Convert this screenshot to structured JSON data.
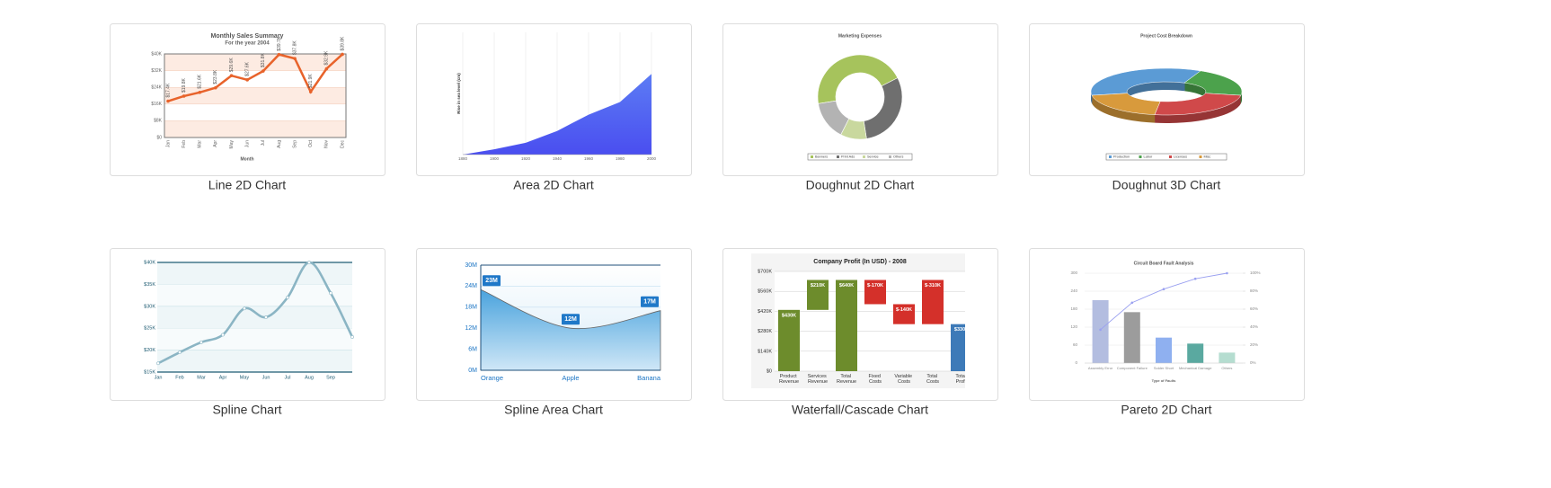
{
  "cards": [
    {
      "caption": "Line 2D Chart",
      "chart": {
        "type": "line",
        "title": "Monthly Sales Summary",
        "subtitle": "For the year 2004",
        "x_label": "Month",
        "categories": [
          "Jan",
          "Feb",
          "Mar",
          "Apr",
          "May",
          "Jun",
          "Jul",
          "Aug",
          "Sep",
          "Oct",
          "Nov",
          "Dec"
        ],
        "values": [
          17400,
          19800,
          21600,
          23800,
          29600,
          27600,
          31800,
          39700,
          37800,
          21900,
          32900,
          39800
        ],
        "value_labels": [
          "$17.4K",
          "$19.8K",
          "$21.6K",
          "$23.8K",
          "$29.6K",
          "$27.6K",
          "$31.8K",
          "$39.7K",
          "$37.8K",
          "$21.9K",
          "$32.9K",
          "$39.8K"
        ],
        "ylim": [
          0,
          40000
        ],
        "yticks": [
          {
            "value": 0,
            "label": "$0"
          },
          {
            "value": 8000,
            "label": "$8K"
          },
          {
            "value": 16000,
            "label": "$16K"
          },
          {
            "value": 24000,
            "label": "$24K"
          },
          {
            "value": 32000,
            "label": "$32K"
          },
          {
            "value": 40000,
            "label": "$40K"
          }
        ],
        "color": "#e8632b",
        "band_color": "#fdebe2"
      }
    },
    {
      "caption": "Area 2D Chart",
      "chart": {
        "type": "area",
        "y_label": "Rise in sea level (cm)",
        "x": [
          1880,
          1900,
          1920,
          1940,
          1960,
          1980,
          2000
        ],
        "values": [
          0,
          1.3,
          2.9,
          5.8,
          9.8,
          12.9,
          19.8
        ],
        "xlim": [
          1880,
          2000
        ],
        "xticks": [
          1880,
          1900,
          1920,
          1940,
          1960,
          1980,
          2000
        ],
        "ylim": [
          0,
          30
        ],
        "color": "#4f5ef2",
        "grid": true
      }
    },
    {
      "caption": "Doughnut 2D Chart",
      "chart": {
        "type": "doughnut",
        "title": "Marketing Expenses",
        "categories": [
          "Banners",
          "Print Ads",
          "Service",
          "Others"
        ],
        "values": [
          45,
          30,
          10,
          15
        ],
        "colors": [
          "#a6c35c",
          "#6f6f6f",
          "#c9d89e",
          "#b3b3b3"
        ]
      }
    },
    {
      "caption": "Doughnut 3D Chart",
      "chart": {
        "type": "doughnut3d",
        "title": "Project Cost Breakdown",
        "categories": [
          "Production",
          "Labor",
          "Licenses",
          "Misc"
        ],
        "values": [
          35,
          20,
          25,
          20
        ],
        "colors": [
          "#5b9bd5",
          "#4ca24c",
          "#d0494a",
          "#d89a3c"
        ]
      }
    },
    {
      "caption": "Spline Chart",
      "chart": {
        "type": "spline",
        "categories": [
          "Jan",
          "Feb",
          "Mar",
          "Apr",
          "May",
          "Jun",
          "Jul",
          "Aug",
          "Sep",
          null
        ],
        "values": [
          17000,
          19500,
          21800,
          23500,
          29500,
          27500,
          32000,
          40000,
          33000,
          23000
        ],
        "ylim": [
          15000,
          40000
        ],
        "yticks": [
          {
            "value": 15000,
            "label": "$15K"
          },
          {
            "value": 20000,
            "label": "$20K"
          },
          {
            "value": 25000,
            "label": "$25K"
          },
          {
            "value": 30000,
            "label": "$30K"
          },
          {
            "value": 35000,
            "label": "$35K"
          },
          {
            "value": 40000,
            "label": "$40K"
          }
        ],
        "color": "#8bb5c4",
        "grid": true
      }
    },
    {
      "caption": "Spline Area Chart",
      "chart": {
        "type": "spline_area",
        "categories": [
          "Orange",
          "Apple",
          "Banana"
        ],
        "values": [
          23000000,
          12000000,
          17000000
        ],
        "value_labels": [
          "23M",
          "12M",
          "17M"
        ],
        "ylim": [
          0,
          30000000
        ],
        "yticks": [
          {
            "value": 0,
            "label": "0M"
          },
          {
            "value": 6000000,
            "label": "6M"
          },
          {
            "value": 12000000,
            "label": "12M"
          },
          {
            "value": 18000000,
            "label": "18M"
          },
          {
            "value": 24000000,
            "label": "24M"
          },
          {
            "value": 30000000,
            "label": "30M"
          }
        ],
        "color": "#3e9ad8"
      }
    },
    {
      "caption": "Waterfall/Cascade Chart",
      "chart": {
        "type": "waterfall",
        "title": "Company Profit (In USD) - 2008",
        "categories": [
          "Product Revenue",
          "Services Revenue",
          "Total Revenue",
          "Fixed Costs",
          "Variable Costs",
          "Total Costs",
          "Total Profit"
        ],
        "values": [
          430000,
          210000,
          640000,
          -170000,
          -140000,
          -310000,
          330000
        ],
        "value_labels": [
          "$430K",
          "$210K",
          "$640K",
          "$-170K",
          "$-140K",
          "$-310K",
          "$330K"
        ],
        "totals": [
          false,
          false,
          true,
          false,
          false,
          true,
          true
        ],
        "colors": [
          "#6d8c2c",
          "#6d8c2c",
          "#6d8c2c",
          "#d4302a",
          "#d4302a",
          "#d4302a",
          "#3d7ab8"
        ],
        "ylim": [
          0,
          700000
        ],
        "yticks": [
          {
            "value": 0,
            "label": "$0"
          },
          {
            "value": 140000,
            "label": "$140K"
          },
          {
            "value": 280000,
            "label": "$280K"
          },
          {
            "value": 420000,
            "label": "$420K"
          },
          {
            "value": 560000,
            "label": "$560K"
          },
          {
            "value": 700000,
            "label": "$700K"
          }
        ]
      }
    },
    {
      "caption": "Pareto 2D Chart",
      "chart": {
        "type": "pareto",
        "title": "Circuit Board Fault Analysis",
        "x_label": "Type of Faults",
        "categories": [
          "Assembly Error",
          "Component Failure",
          "Solder Short",
          "Mechanical Damage",
          "Others"
        ],
        "values": [
          210,
          170,
          85,
          65,
          35
        ],
        "colors": [
          "#b3bde0",
          "#9c9c9c",
          "#8fb0f0",
          "#5aa9a0",
          "#b5ddd0"
        ],
        "ylim": [
          0,
          300
        ],
        "yticks": [
          0,
          60,
          120,
          180,
          240,
          300
        ],
        "y2lim": [
          0,
          100
        ],
        "y2ticks": [
          {
            "value": 0,
            "label": "0%"
          },
          {
            "value": 20,
            "label": "20%"
          },
          {
            "value": 40,
            "label": "40%"
          },
          {
            "value": 60,
            "label": "60%"
          },
          {
            "value": 80,
            "label": "80%"
          },
          {
            "value": 100,
            "label": "100%"
          }
        ],
        "line_color": "#9aa0f0"
      }
    }
  ]
}
